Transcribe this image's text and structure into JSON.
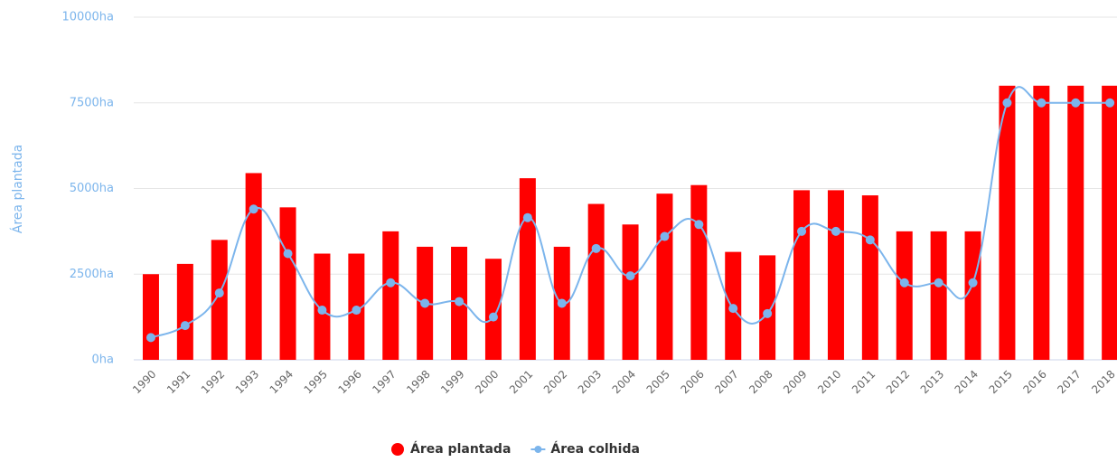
{
  "chart_data": {
    "type": "bar_line",
    "y_axis_label": "Área plantada",
    "categories": [
      "1990",
      "1991",
      "1992",
      "1993",
      "1994",
      "1995",
      "1996",
      "1997",
      "1998",
      "1999",
      "2000",
      "2001",
      "2002",
      "2003",
      "2004",
      "2005",
      "2006",
      "2007",
      "2008",
      "2009",
      "2010",
      "2011",
      "2012",
      "2013",
      "2014",
      "2015",
      "2016",
      "2017",
      "2018"
    ],
    "series": [
      {
        "name": "Área plantada",
        "type": "bar",
        "color": "#ff0000",
        "values": [
          2500,
          2800,
          3500,
          5450,
          4450,
          3100,
          3100,
          3750,
          3300,
          3300,
          2950,
          5300,
          3300,
          4550,
          3950,
          4850,
          5100,
          3150,
          3050,
          4950,
          4950,
          4800,
          3750,
          3750,
          3750,
          8000,
          8000,
          8000,
          8000
        ]
      },
      {
        "name": "Área colhida",
        "type": "line",
        "color": "#7cb5ec",
        "values": [
          650,
          1000,
          1950,
          4400,
          3100,
          1450,
          1450,
          2250,
          1650,
          1700,
          1250,
          4150,
          1650,
          3250,
          2450,
          3600,
          3950,
          1500,
          1350,
          3750,
          3750,
          3500,
          2250,
          2250,
          2250,
          7500,
          7500,
          7500,
          7500
        ]
      }
    ],
    "ylim": [
      0,
      10000
    ],
    "yticks": [
      {
        "value": 0,
        "label": "0ha"
      },
      {
        "value": 2500,
        "label": "2500ha"
      },
      {
        "value": 5000,
        "label": "5000ha"
      },
      {
        "value": 7500,
        "label": "7500ha"
      },
      {
        "value": 10000,
        "label": "10000ha"
      }
    ],
    "grid": true,
    "legend": "bottom"
  }
}
